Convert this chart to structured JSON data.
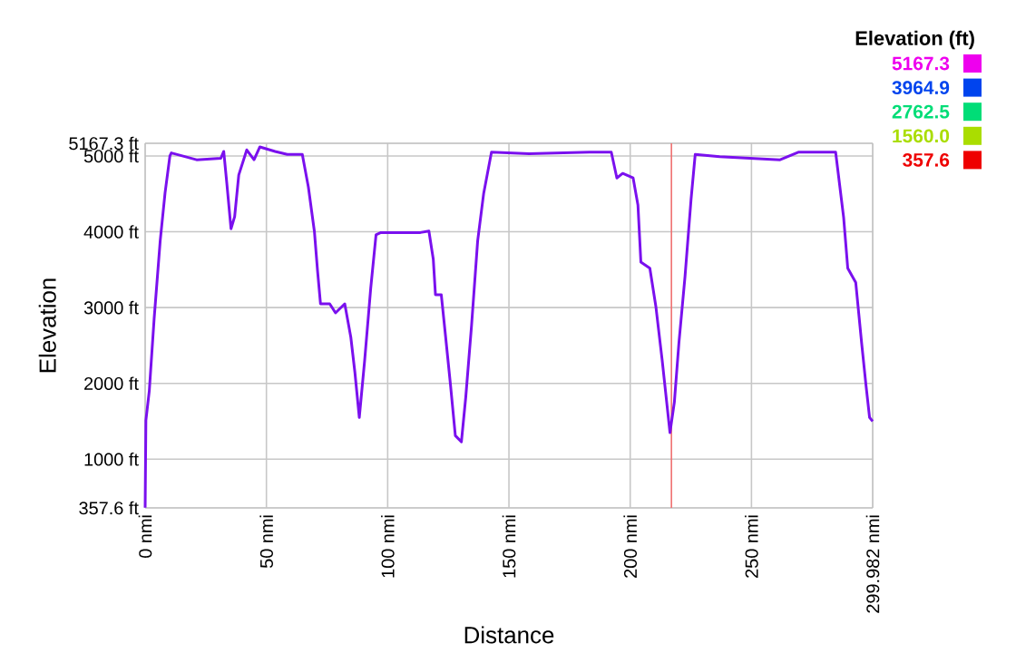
{
  "chart_data": {
    "type": "line",
    "xlabel": "Distance",
    "ylabel": "Elevation",
    "clabel": "Elevation (ft)",
    "x": [
      0,
      0.3,
      1.7,
      3.7,
      6.2,
      8.2,
      10.2,
      10.8,
      21.2,
      31.2,
      32.4,
      33.7,
      35.4,
      36.9,
      38.6,
      41.9,
      44.9,
      47.3,
      53.6,
      58.6,
      64.8,
      67.3,
      69.8,
      71.1,
      72.3,
      76.1,
      78.5,
      82.3,
      84.8,
      86.5,
      88.3,
      90.5,
      93,
      95.2,
      97.2,
      113.5,
      117,
      118.8,
      119.7,
      122.1,
      123.9,
      125.9,
      127.9,
      130.4,
      132.2,
      134.6,
      137.1,
      139.6,
      142.8,
      158.3,
      183.2,
      192.2,
      194.5,
      196.9,
      201.2,
      203.2,
      204.4,
      208.1,
      210.6,
      213.2,
      216.4,
      218.2,
      220.1,
      222.6,
      225.1,
      226.8,
      236.9,
      261.8,
      269.3,
      284.7,
      288,
      289.7,
      293,
      295.4,
      297.2,
      298.7,
      299.982
    ],
    "series": [
      {
        "color": "#7a10ee",
        "values": [
          360,
          1510,
          1900,
          2850,
          3880,
          4510,
          5000,
          5040,
          4950,
          4970,
          5060,
          4630,
          4040,
          4200,
          4750,
          5080,
          4950,
          5120,
          5060,
          5020,
          5020,
          4590,
          4000,
          3480,
          3050,
          3050,
          2930,
          3050,
          2610,
          2140,
          1550,
          2300,
          3250,
          3960,
          3990,
          3990,
          4010,
          3640,
          3170,
          3170,
          2610,
          1980,
          1310,
          1230,
          1820,
          2770,
          3880,
          4510,
          5050,
          5030,
          5050,
          5050,
          4710,
          4770,
          4710,
          4350,
          3600,
          3520,
          3010,
          2300,
          1350,
          1750,
          2540,
          3410,
          4430,
          5020,
          4990,
          4950,
          5050,
          5050,
          4190,
          3520,
          3330,
          2540,
          1980,
          1550,
          1500
        ]
      }
    ],
    "xlim": [
      0,
      299.982
    ],
    "xticks": [
      {
        "value": 0,
        "label": "0 nmi"
      },
      {
        "value": 50,
        "label": "50 nmi"
      },
      {
        "value": 100,
        "label": "100 nmi"
      },
      {
        "value": 150,
        "label": "150 nmi"
      },
      {
        "value": 200,
        "label": "200 nmi"
      },
      {
        "value": 250,
        "label": "250 nmi"
      },
      {
        "value": 299.982,
        "label": "299.982 nmi"
      }
    ],
    "ylim": [
      357.6,
      5167.3
    ],
    "yticks": [
      {
        "value": 357.6,
        "label": "357.6 ft"
      },
      {
        "value": 1000,
        "label": "1000 ft"
      },
      {
        "value": 2000,
        "label": "2000 ft"
      },
      {
        "value": 3000,
        "label": "3000 ft"
      },
      {
        "value": 4000,
        "label": "4000 ft"
      },
      {
        "value": 5000,
        "label": "5000 ft"
      },
      {
        "value": 5167.3,
        "label": "5167.3 ft"
      }
    ],
    "clim": [
      357.6,
      5167.3
    ],
    "cticks": [
      {
        "value": 5167.3,
        "label": "5167.3"
      },
      {
        "value": 3964.9,
        "label": "3964.9"
      },
      {
        "value": 2762.5,
        "label": "2762.5"
      },
      {
        "value": 1560.0,
        "label": "1560.0"
      },
      {
        "value": 357.6,
        "label": "357.6"
      }
    ],
    "colors": [
      "#ee00ee",
      "#0044ee",
      "#00dd77",
      "#aadd00",
      "#ee0000"
    ],
    "ref_lines": [
      {
        "axis": "x",
        "value": 217,
        "color": "#f07070"
      }
    ],
    "grid": true,
    "line_style": "solid",
    "marker": "none"
  }
}
